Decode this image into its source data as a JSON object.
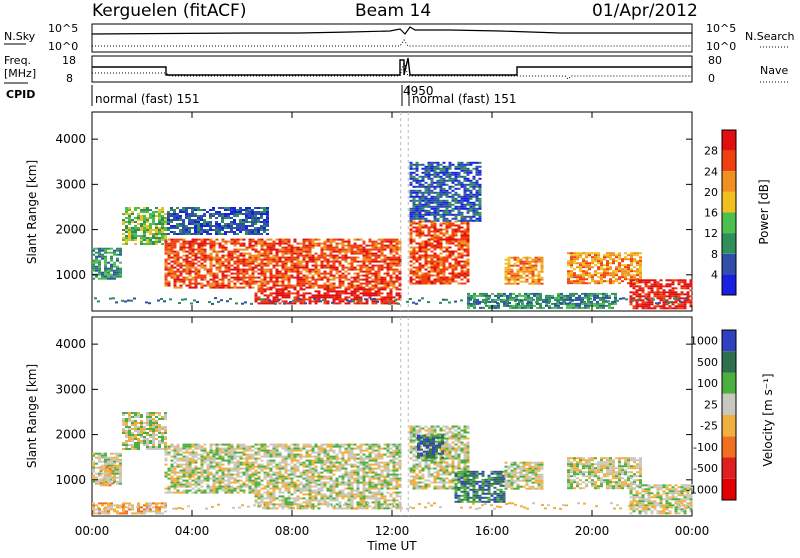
{
  "header": {
    "station": "Kerguelen (fitACF)",
    "beam": "Beam 14",
    "date": "01/Apr/2012"
  },
  "colors": {
    "power": [
      "#1a20e0",
      "#2f4fa8",
      "#2f8f5a",
      "#4cc04c",
      "#f0c020",
      "#f09020",
      "#f04010",
      "#e01010"
    ],
    "velocity": [
      "#3040c0",
      "#2f6f50",
      "#4cb040",
      "#c8c8c0",
      "#f0b040",
      "#f07020",
      "#e02020",
      "#e00000"
    ],
    "grey_scatter": "#c8c8c0"
  },
  "top_panel": {
    "left_label": "N.Sky",
    "left_ticks": [
      "10^5",
      "10^0"
    ],
    "right_label": "N.Search",
    "right_ticks": [
      "10^5",
      "10^0"
    ]
  },
  "freq_panel": {
    "left_label_1": "Freq.",
    "left_label_2": "[MHz]",
    "left_ticks": [
      "18",
      "8"
    ],
    "right_label": "Nave",
    "right_ticks": [
      "80",
      "0"
    ],
    "cpid_label": "CPID",
    "cpid_segments": [
      "normal (fast) 151",
      "4950",
      "normal (fast) 151"
    ]
  },
  "chart_data": [
    {
      "type": "heatmap",
      "title": "",
      "ylabel": "Slant Range [km]",
      "xlabel": "",
      "x_ticks": [
        "00:00",
        "04:00",
        "08:00",
        "12:00",
        "16:00",
        "20:00",
        "00:00"
      ],
      "y_ticks": [
        1000,
        2000,
        3000,
        4000
      ],
      "ylim": [
        200,
        4600
      ],
      "xlim": [
        0,
        24
      ],
      "colorbar": {
        "label": "Power [dB]",
        "ticks": [
          4,
          8,
          12,
          16,
          20,
          24,
          28
        ],
        "range": [
          0,
          32
        ]
      },
      "regions": [
        {
          "t0": 0.0,
          "t1": 1.1,
          "r0": 900,
          "r1": 1600,
          "level": 2
        },
        {
          "t0": 1.2,
          "t1": 2.9,
          "r0": 1700,
          "r1": 2500,
          "level": 3
        },
        {
          "t0": 2.9,
          "t1": 12.3,
          "r0": 700,
          "r1": 1800,
          "level": 6
        },
        {
          "t0": 3.0,
          "t1": 7.0,
          "r0": 1900,
          "r1": 2500,
          "level": 1
        },
        {
          "t0": 6.5,
          "t1": 12.3,
          "r0": 380,
          "r1": 700,
          "level": 7
        },
        {
          "t0": 12.7,
          "t1": 15.0,
          "r0": 800,
          "r1": 2200,
          "level": 6
        },
        {
          "t0": 12.7,
          "t1": 15.5,
          "r0": 2200,
          "r1": 3500,
          "level": 1
        },
        {
          "t0": 16.5,
          "t1": 18.0,
          "r0": 800,
          "r1": 1400,
          "level": 5
        },
        {
          "t0": 19.0,
          "t1": 22.0,
          "r0": 800,
          "r1": 1500,
          "level": 5
        },
        {
          "t0": 21.5,
          "t1": 24.0,
          "r0": 250,
          "r1": 900,
          "level": 7
        },
        {
          "t0": 15.0,
          "t1": 21.0,
          "r0": 250,
          "r1": 600,
          "level": 2
        }
      ]
    },
    {
      "type": "heatmap",
      "title": "",
      "ylabel": "Slant Range [km]",
      "xlabel": "Time UT",
      "x_ticks": [
        "00:00",
        "04:00",
        "08:00",
        "12:00",
        "16:00",
        "20:00",
        "00:00"
      ],
      "y_ticks": [
        1000,
        2000,
        3000,
        4000
      ],
      "ylim": [
        200,
        4600
      ],
      "xlim": [
        0,
        24
      ],
      "colorbar": {
        "label": "Velocity [m s⁻¹]",
        "ticks": [
          1000,
          500,
          100,
          25,
          -25,
          -100,
          -500,
          -1000
        ]
      },
      "regions": [
        {
          "t0": 0.0,
          "t1": 1.1,
          "r0": 900,
          "r1": 1600,
          "level": 3
        },
        {
          "t0": 0.3,
          "t1": 0.9,
          "r0": 900,
          "r1": 1300,
          "level": 4
        },
        {
          "t0": 1.2,
          "t1": 2.9,
          "r0": 1700,
          "r1": 2500,
          "level": 3
        },
        {
          "t0": 2.9,
          "t1": 12.3,
          "r0": 700,
          "r1": 1800,
          "level": 3
        },
        {
          "t0": 6.5,
          "t1": 12.3,
          "r0": 380,
          "r1": 700,
          "level": 3
        },
        {
          "t0": 12.7,
          "t1": 15.0,
          "r0": 800,
          "r1": 2200,
          "level": 3
        },
        {
          "t0": 13.0,
          "t1": 14.0,
          "r0": 1500,
          "r1": 2000,
          "level": 1
        },
        {
          "t0": 14.5,
          "t1": 16.5,
          "r0": 500,
          "r1": 1200,
          "level": 1
        },
        {
          "t0": 16.5,
          "t1": 18.0,
          "r0": 800,
          "r1": 1400,
          "level": 3
        },
        {
          "t0": 19.0,
          "t1": 22.0,
          "r0": 800,
          "r1": 1500,
          "level": 3
        },
        {
          "t0": 21.5,
          "t1": 24.0,
          "r0": 250,
          "r1": 900,
          "level": 3
        },
        {
          "t0": 0.0,
          "t1": 3.0,
          "r0": 250,
          "r1": 500,
          "level": 4
        }
      ]
    }
  ],
  "x_axis_title": "Time UT"
}
